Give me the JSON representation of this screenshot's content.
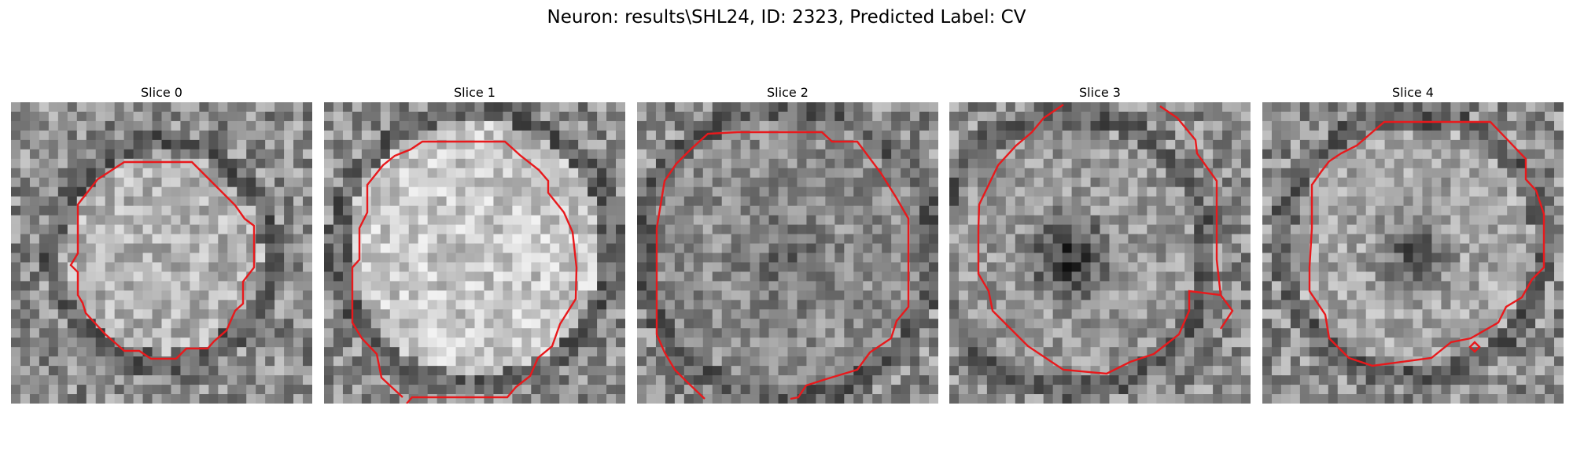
{
  "figure": {
    "title": "Neuron: results\\SHL24, ID: 2323, Predicted Label: CV"
  },
  "panels": [
    {
      "title": "Slice 0"
    },
    {
      "title": "Slice 1"
    },
    {
      "title": "Slice 2"
    },
    {
      "title": "Slice 3"
    },
    {
      "title": "Slice 4"
    }
  ],
  "colors": {
    "contour": "#e8191c",
    "background": "#ffffff"
  }
}
